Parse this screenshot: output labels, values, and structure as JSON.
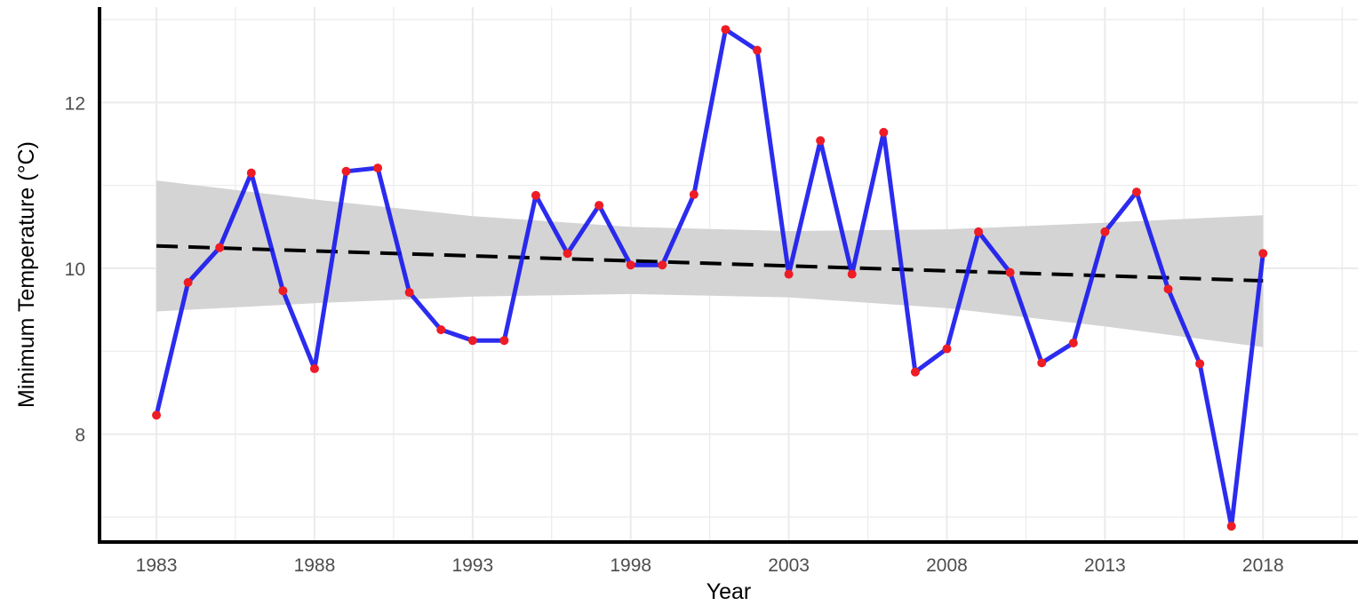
{
  "chart_data": {
    "type": "line",
    "title": "",
    "xlabel": "Year",
    "ylabel": "Minimum Temperature (°C)",
    "xlim": [
      1981.2,
      2021.0
    ],
    "ylim": [
      6.7,
      13.15
    ],
    "x_ticks": [
      1983,
      1988,
      1993,
      1998,
      2003,
      2008,
      2013,
      2018
    ],
    "x_tick_labels": [
      "1983",
      "1988",
      "1993",
      "1998",
      "2003",
      "2008",
      "2013",
      "2018"
    ],
    "y_ticks": [
      8,
      10,
      12
    ],
    "y_tick_labels": [
      "8",
      "10",
      "12"
    ],
    "grid": true,
    "x": [
      1983,
      1984,
      1985,
      1986,
      1987,
      1988,
      1989,
      1990,
      1991,
      1992,
      1993,
      1994,
      1995,
      1996,
      1997,
      1998,
      1999,
      2000,
      2001,
      2002,
      2003,
      2004,
      2005,
      2006,
      2007,
      2008,
      2009,
      2010,
      2011,
      2012,
      2013,
      2014,
      2015,
      2016,
      2017,
      2018
    ],
    "values": [
      8.23,
      9.83,
      10.25,
      11.15,
      9.73,
      8.79,
      11.17,
      11.21,
      9.71,
      9.26,
      9.13,
      9.13,
      10.88,
      10.18,
      10.76,
      10.04,
      10.04,
      10.89,
      12.88,
      12.63,
      9.93,
      11.54,
      9.93,
      11.64,
      8.75,
      9.03,
      10.44,
      9.95,
      8.86,
      9.1,
      10.44,
      10.92,
      9.75,
      8.85,
      6.89,
      10.18
    ],
    "trend": {
      "start": [
        1983,
        10.27
      ],
      "end": [
        2018,
        9.85
      ]
    },
    "confidence_band": {
      "x": [
        1983,
        1988,
        1993,
        1998,
        2003,
        2008,
        2013,
        2018
      ],
      "lower": [
        9.48,
        9.58,
        9.66,
        9.69,
        9.65,
        9.52,
        9.3,
        9.05
      ],
      "upper": [
        11.06,
        10.83,
        10.63,
        10.5,
        10.45,
        10.47,
        10.55,
        10.64
      ]
    },
    "colors": {
      "line": "#1a1aee",
      "points": "#ee1c24",
      "trend": "#000000",
      "band": "#d4d4d4",
      "grid": "#ebebeb"
    }
  }
}
